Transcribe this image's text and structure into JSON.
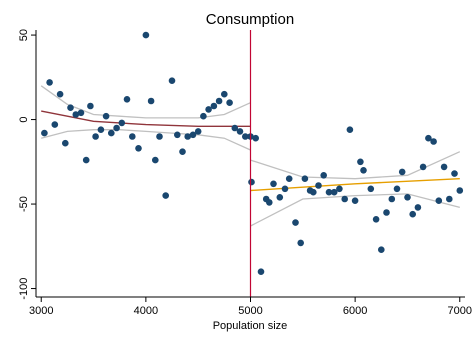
{
  "chart_data": {
    "type": "scatter",
    "title": "Consumption",
    "xlabel": "Population size",
    "ylabel": "",
    "xlim": [
      2950,
      7050
    ],
    "ylim": [
      -105,
      53
    ],
    "xticks": [
      3000,
      4000,
      5000,
      6000,
      7000
    ],
    "yticks": [
      50,
      0,
      -50,
      -100
    ],
    "xtick_labels": [
      "3000",
      "4000",
      "5000",
      "6000",
      "7000"
    ],
    "ytick_labels": [
      "50",
      "0",
      "-50",
      "-100"
    ],
    "cutoff": 5000,
    "grid": false,
    "colors": {
      "points": "#1a476f",
      "left_fit": "#90353b",
      "right_fit": "#e69f00",
      "ci": "#c0c0c0",
      "cutoff_line": "#c10534"
    },
    "points": [
      [
        3030,
        -8
      ],
      [
        3080,
        22
      ],
      [
        3130,
        -3
      ],
      [
        3180,
        15
      ],
      [
        3230,
        -14
      ],
      [
        3280,
        7
      ],
      [
        3330,
        3
      ],
      [
        3380,
        4
      ],
      [
        3430,
        -24
      ],
      [
        3470,
        8
      ],
      [
        3520,
        -10
      ],
      [
        3570,
        -6
      ],
      [
        3620,
        2
      ],
      [
        3670,
        -8
      ],
      [
        3720,
        -5
      ],
      [
        3770,
        -2
      ],
      [
        3820,
        12
      ],
      [
        3870,
        -10
      ],
      [
        3930,
        -17
      ],
      [
        4000,
        50
      ],
      [
        4050,
        11
      ],
      [
        4090,
        -24
      ],
      [
        4130,
        -10
      ],
      [
        4190,
        -45
      ],
      [
        4250,
        23
      ],
      [
        4300,
        -9
      ],
      [
        4350,
        -19
      ],
      [
        4400,
        -10
      ],
      [
        4450,
        -9
      ],
      [
        4500,
        -7
      ],
      [
        4550,
        2
      ],
      [
        4600,
        6
      ],
      [
        4650,
        8
      ],
      [
        4700,
        11
      ],
      [
        4750,
        15
      ],
      [
        4800,
        10
      ],
      [
        4850,
        -5
      ],
      [
        4900,
        -7
      ],
      [
        4950,
        -10
      ],
      [
        5000,
        -10
      ],
      [
        5010,
        -37
      ],
      [
        5050,
        -11
      ],
      [
        5100,
        -90
      ],
      [
        5150,
        -47
      ],
      [
        5180,
        -49
      ],
      [
        5220,
        -38
      ],
      [
        5280,
        -46
      ],
      [
        5330,
        -41
      ],
      [
        5370,
        -35
      ],
      [
        5430,
        -61
      ],
      [
        5480,
        -73
      ],
      [
        5520,
        -35
      ],
      [
        5570,
        -42
      ],
      [
        5600,
        -43
      ],
      [
        5650,
        -39
      ],
      [
        5700,
        -33
      ],
      [
        5750,
        -43
      ],
      [
        5800,
        -43
      ],
      [
        5850,
        -41
      ],
      [
        5900,
        -47
      ],
      [
        5950,
        -6
      ],
      [
        6000,
        -48
      ],
      [
        6050,
        -25
      ],
      [
        6080,
        -30
      ],
      [
        6150,
        -41
      ],
      [
        6200,
        -59
      ],
      [
        6250,
        -77
      ],
      [
        6300,
        -55
      ],
      [
        6350,
        -47
      ],
      [
        6400,
        -41
      ],
      [
        6450,
        -31
      ],
      [
        6500,
        -46
      ],
      [
        6550,
        -56
      ],
      [
        6600,
        -52
      ],
      [
        6650,
        -28
      ],
      [
        6700,
        -11
      ],
      [
        6750,
        -13
      ],
      [
        6800,
        -48
      ],
      [
        6850,
        -28
      ],
      [
        6900,
        -47
      ],
      [
        6950,
        -32
      ],
      [
        7000,
        -42
      ]
    ],
    "left_fit": [
      [
        3000,
        5
      ],
      [
        3500,
        -1
      ],
      [
        4000,
        -3
      ],
      [
        4500,
        -4
      ],
      [
        5000,
        -4
      ]
    ],
    "left_ci_upper": [
      [
        3000,
        20
      ],
      [
        3250,
        9
      ],
      [
        3500,
        3
      ],
      [
        3750,
        2
      ],
      [
        4000,
        1
      ],
      [
        4250,
        1
      ],
      [
        4500,
        1
      ],
      [
        4750,
        3
      ],
      [
        5000,
        10
      ]
    ],
    "left_ci_lower": [
      [
        3000,
        -11
      ],
      [
        3250,
        -7
      ],
      [
        3500,
        -6
      ],
      [
        3750,
        -6
      ],
      [
        4000,
        -7
      ],
      [
        4250,
        -8
      ],
      [
        4500,
        -9
      ],
      [
        4750,
        -11
      ],
      [
        5000,
        -18
      ]
    ],
    "right_fit": [
      [
        5000,
        -42
      ],
      [
        6000,
        -38
      ],
      [
        7000,
        -35
      ]
    ],
    "right_ci_upper": [
      [
        5000,
        -24
      ],
      [
        5500,
        -34
      ],
      [
        6000,
        -35
      ],
      [
        6500,
        -33
      ],
      [
        7000,
        -19
      ]
    ],
    "right_ci_lower": [
      [
        5000,
        -63
      ],
      [
        5500,
        -47
      ],
      [
        6000,
        -45
      ],
      [
        6500,
        -44
      ],
      [
        7000,
        -52
      ]
    ]
  }
}
